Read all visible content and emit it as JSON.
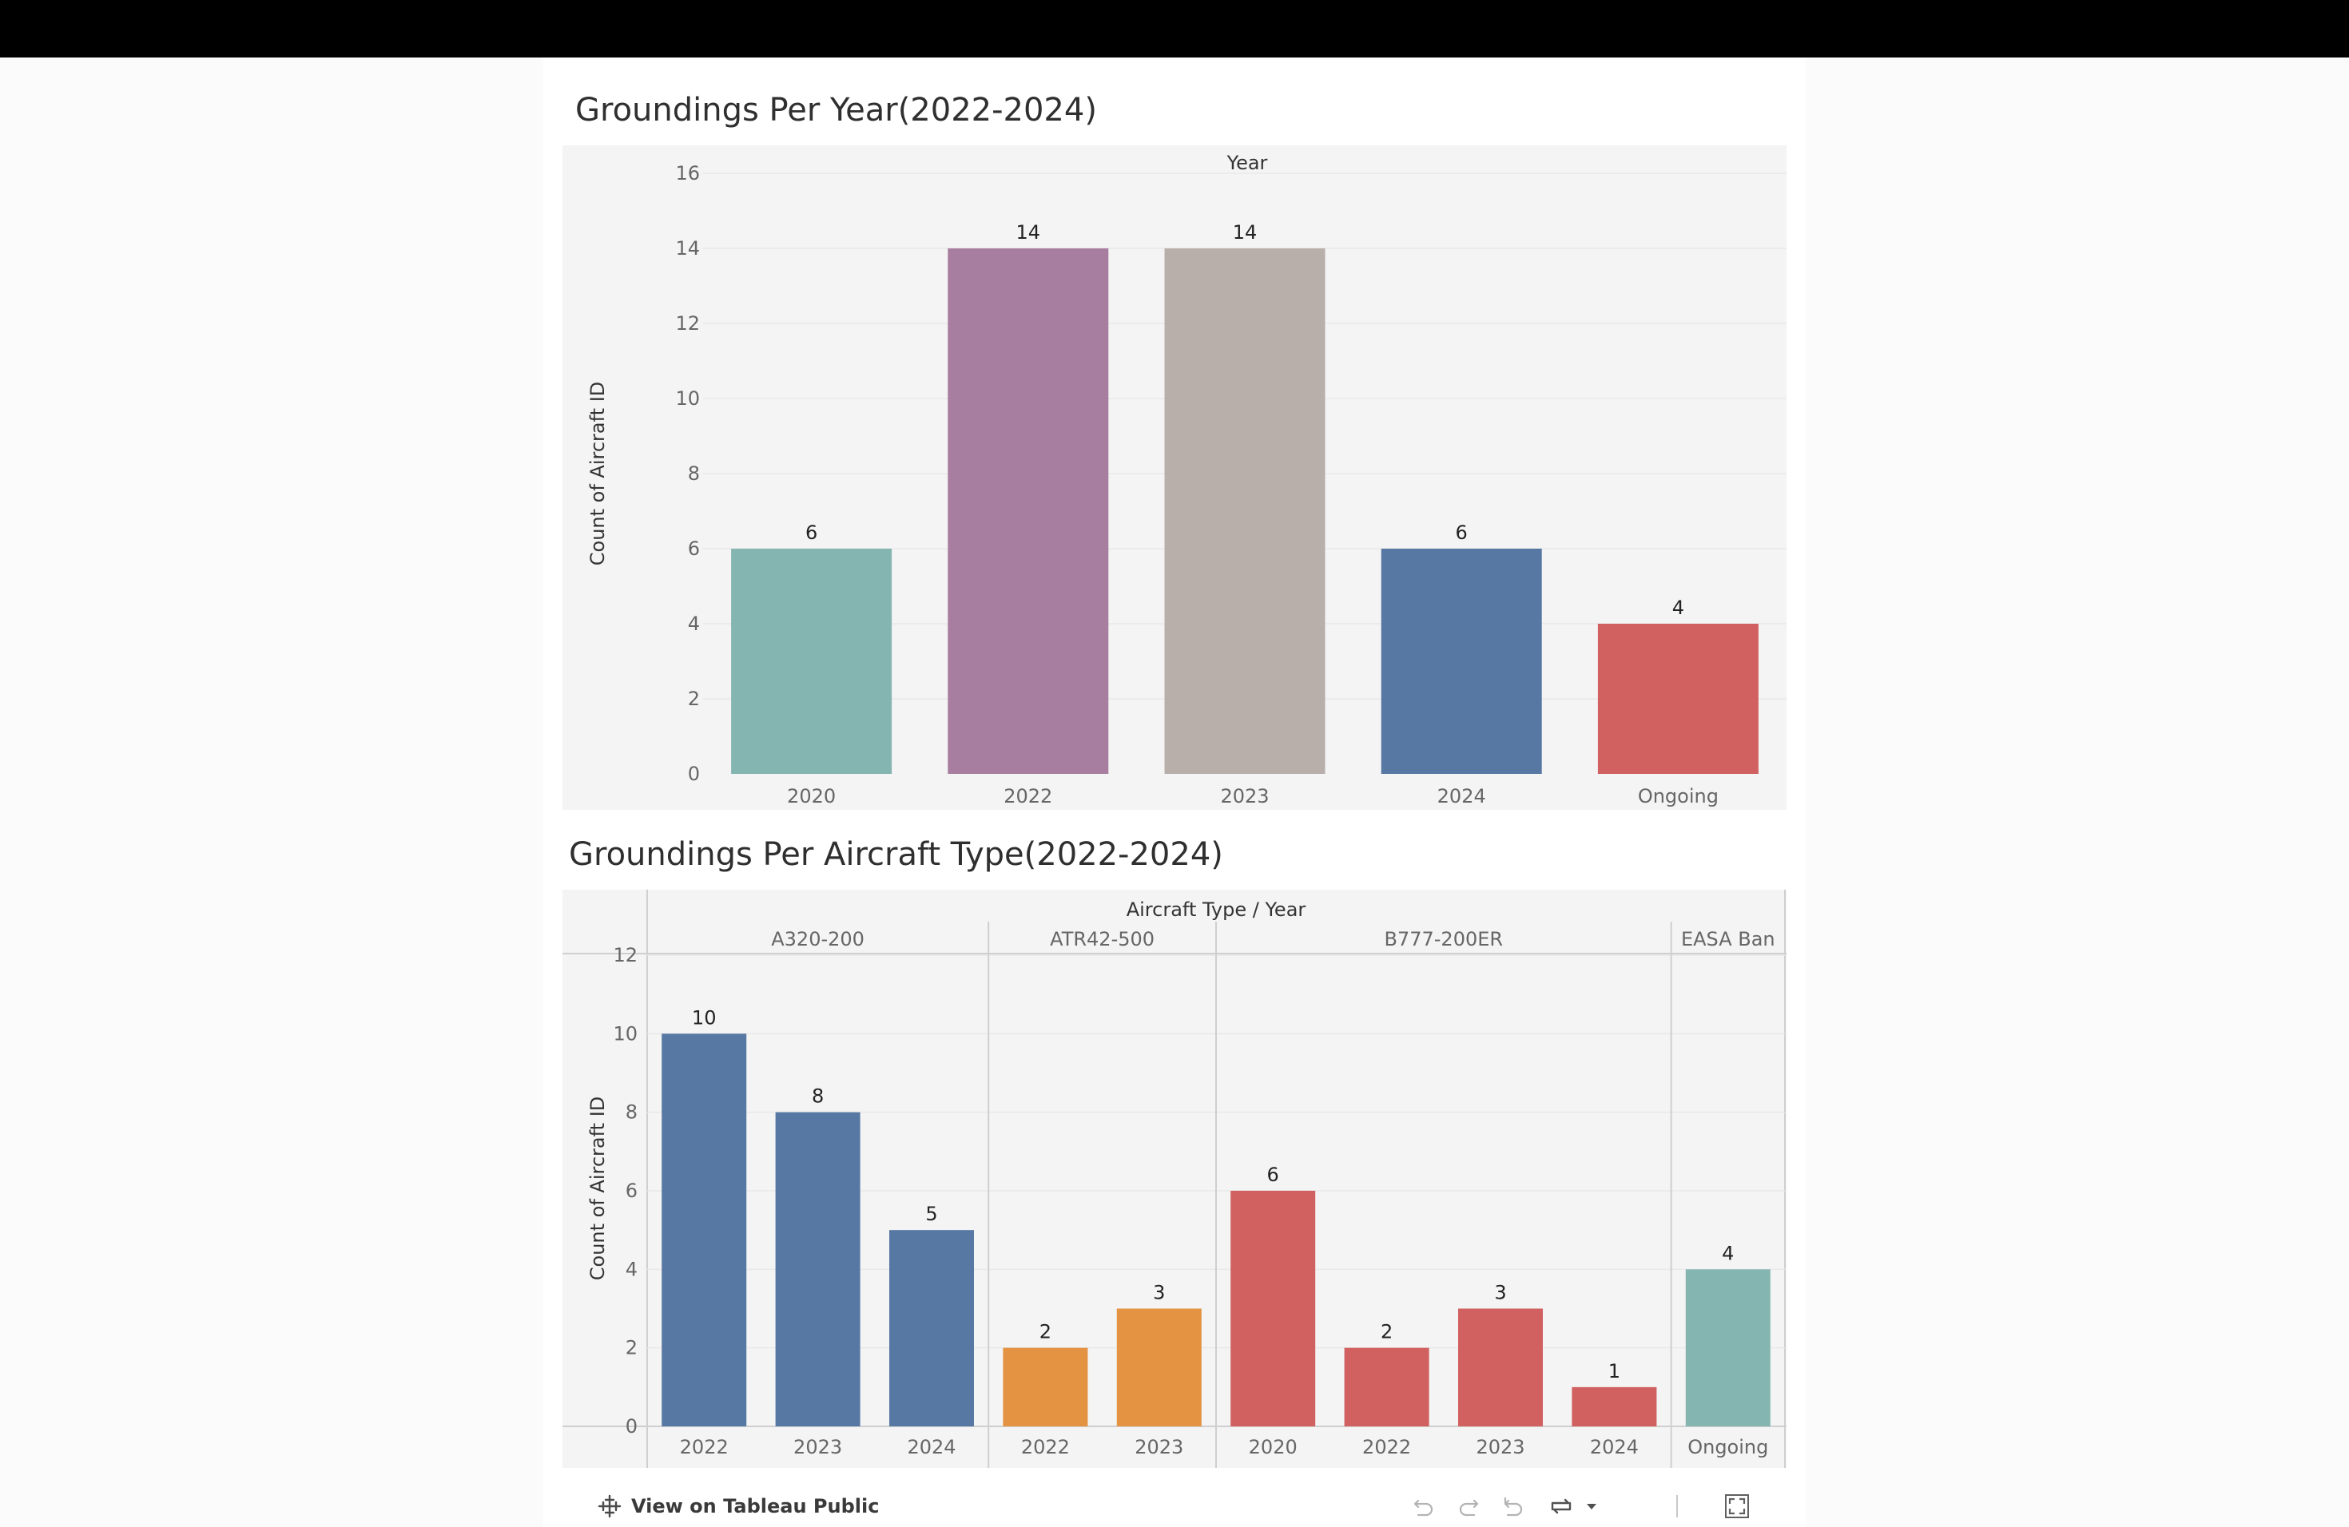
{
  "footer": {
    "tableau_link_label": "View on Tableau Public",
    "toolbar_icons": [
      "undo-icon",
      "redo-icon",
      "revert-icon",
      "refresh-icon",
      "dropdown-caret-icon",
      "fullscreen-icon"
    ]
  },
  "colors": {
    "teal": "#85b5b1",
    "purple": "#a77e9f",
    "taupe": "#b8afab",
    "blue": "#5878a4",
    "red": "#d16060",
    "orange": "#e39342",
    "plot_background": "#f4f4f4",
    "grid": "#e8e8e8"
  },
  "chart_data": [
    {
      "type": "bar",
      "title": "Groundings Per Year(2022-2024)",
      "column_header": "Year",
      "ylabel": "Count of Aircraft ID",
      "ylim": [
        0,
        16
      ],
      "yticks": [
        0,
        2,
        4,
        6,
        8,
        10,
        12,
        14,
        16
      ],
      "categories": [
        "2020",
        "2022",
        "2023",
        "2024",
        "Ongoing"
      ],
      "values": [
        6,
        14,
        14,
        6,
        4
      ],
      "bar_colors": [
        "#85b5b1",
        "#a77e9f",
        "#b8afab",
        "#5878a4",
        "#d16060"
      ],
      "data_labels": true,
      "grid": true
    },
    {
      "type": "bar",
      "title": "Groundings Per Aircraft Type(2022-2024)",
      "column_header": "Aircraft Type / Year",
      "ylabel": "Count of Aircraft ID",
      "ylim": [
        0,
        12
      ],
      "yticks": [
        0,
        2,
        4,
        6,
        8,
        10,
        12
      ],
      "groups": [
        {
          "name": "A320-200",
          "color": "#5878a4",
          "categories": [
            "2022",
            "2023",
            "2024"
          ],
          "values": [
            10,
            8,
            5
          ]
        },
        {
          "name": "ATR42-500",
          "color": "#e39342",
          "categories": [
            "2022",
            "2023"
          ],
          "values": [
            2,
            3
          ]
        },
        {
          "name": "B777-200ER",
          "color": "#d16060",
          "categories": [
            "2020",
            "2022",
            "2023",
            "2024"
          ],
          "values": [
            6,
            2,
            3,
            1
          ]
        },
        {
          "name": "EASA Ban",
          "color": "#85b5b1",
          "categories": [
            "Ongoing"
          ],
          "values": [
            4
          ]
        }
      ],
      "data_labels": true,
      "grid": true
    }
  ]
}
